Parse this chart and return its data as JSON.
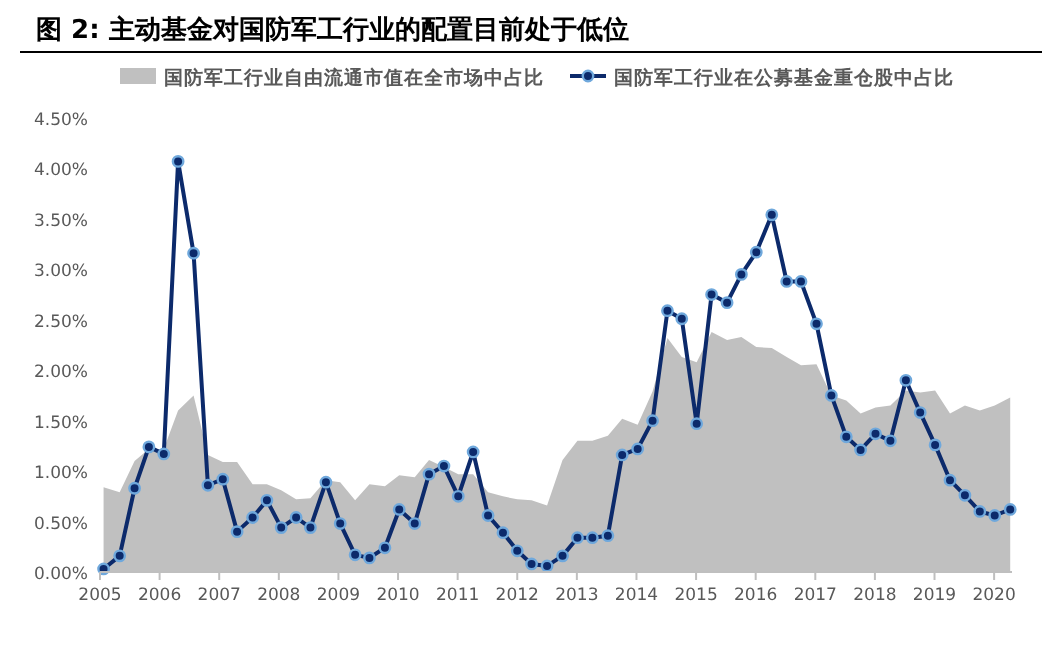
{
  "chart_data": {
    "type": "line",
    "title": "图 2: 主动基金对国防军工行业的配置目前处于低位",
    "x": [
      2005.06,
      2005.33,
      2005.58,
      2005.82,
      2006.07,
      2006.31,
      2006.57,
      2006.81,
      2007.06,
      2007.3,
      2007.56,
      2007.8,
      2008.04,
      2008.29,
      2008.53,
      2008.79,
      2009.03,
      2009.28,
      2009.52,
      2009.78,
      2010.02,
      2010.28,
      2010.52,
      2010.77,
      2011.01,
      2011.26,
      2011.51,
      2011.76,
      2012.0,
      2012.24,
      2012.5,
      2012.76,
      2013.01,
      2013.26,
      2013.52,
      2013.76,
      2014.02,
      2014.27,
      2014.52,
      2014.76,
      2015.01,
      2015.26,
      2015.52,
      2015.76,
      2016.01,
      2016.27,
      2016.52,
      2016.76,
      2017.02,
      2017.27,
      2017.52,
      2017.76,
      2018.01,
      2018.26,
      2018.52,
      2018.76,
      2019.01,
      2019.26,
      2019.51,
      2019.76,
      2020.01,
      2020.27
    ],
    "series": [
      {
        "name": "国防军工行业自由流通市值在全市场中占比",
        "type": "area",
        "color": "#c0c0c0",
        "values": [
          0.84,
          0.79,
          1.1,
          1.22,
          1.22,
          1.6,
          1.75,
          1.16,
          1.09,
          1.09,
          0.87,
          0.87,
          0.81,
          0.72,
          0.73,
          0.91,
          0.89,
          0.71,
          0.87,
          0.85,
          0.96,
          0.94,
          1.11,
          1.04,
          0.97,
          0.97,
          0.79,
          0.75,
          0.72,
          0.71,
          0.66,
          1.11,
          1.3,
          1.3,
          1.35,
          1.52,
          1.46,
          1.79,
          2.32,
          2.13,
          2.08,
          2.38,
          2.3,
          2.33,
          2.23,
          2.22,
          2.13,
          2.05,
          2.06,
          1.75,
          1.7,
          1.57,
          1.63,
          1.65,
          1.8,
          1.78,
          1.8,
          1.57,
          1.65,
          1.6,
          1.65,
          1.73
        ]
      },
      {
        "name": "国防军工行业在公募基金重仓股中占比",
        "color": "#0c2a6b",
        "marker": "circle",
        "values": [
          0.03,
          0.16,
          0.83,
          1.24,
          1.17,
          4.07,
          3.16,
          0.86,
          0.92,
          0.4,
          0.54,
          0.71,
          0.44,
          0.54,
          0.44,
          0.89,
          0.48,
          0.17,
          0.14,
          0.24,
          0.62,
          0.48,
          0.97,
          1.05,
          0.75,
          1.19,
          0.56,
          0.39,
          0.21,
          0.08,
          0.06,
          0.16,
          0.34,
          0.34,
          0.36,
          1.16,
          1.22,
          1.5,
          2.59,
          2.51,
          1.47,
          2.75,
          2.67,
          2.95,
          3.17,
          3.54,
          2.88,
          2.88,
          2.46,
          1.75,
          1.34,
          1.21,
          1.37,
          1.3,
          1.9,
          1.58,
          1.26,
          0.91,
          0.76,
          0.6,
          0.56,
          0.62
        ]
      }
    ],
    "xlim": [
      2005,
      2020.3
    ],
    "xticks": [
      2005,
      2006,
      2007,
      2008,
      2009,
      2010,
      2011,
      2012,
      2013,
      2014,
      2015,
      2016,
      2017,
      2018,
      2019,
      2020
    ],
    "ylim": [
      0,
      4.5
    ],
    "yticks": [
      {
        "value": 0,
        "label": "0.00%"
      },
      {
        "value": 0.5,
        "label": "0.50%"
      },
      {
        "value": 1,
        "label": "1.00%"
      },
      {
        "value": 1.5,
        "label": "1.50%"
      },
      {
        "value": 2,
        "label": "2.00%"
      },
      {
        "value": 2.5,
        "label": "2.50%"
      },
      {
        "value": 3,
        "label": "3.00%"
      },
      {
        "value": 3.5,
        "label": "3.50%"
      },
      {
        "value": 4,
        "label": "4.00%"
      },
      {
        "value": 4.5,
        "label": "4.50%"
      }
    ],
    "legend": "top"
  }
}
